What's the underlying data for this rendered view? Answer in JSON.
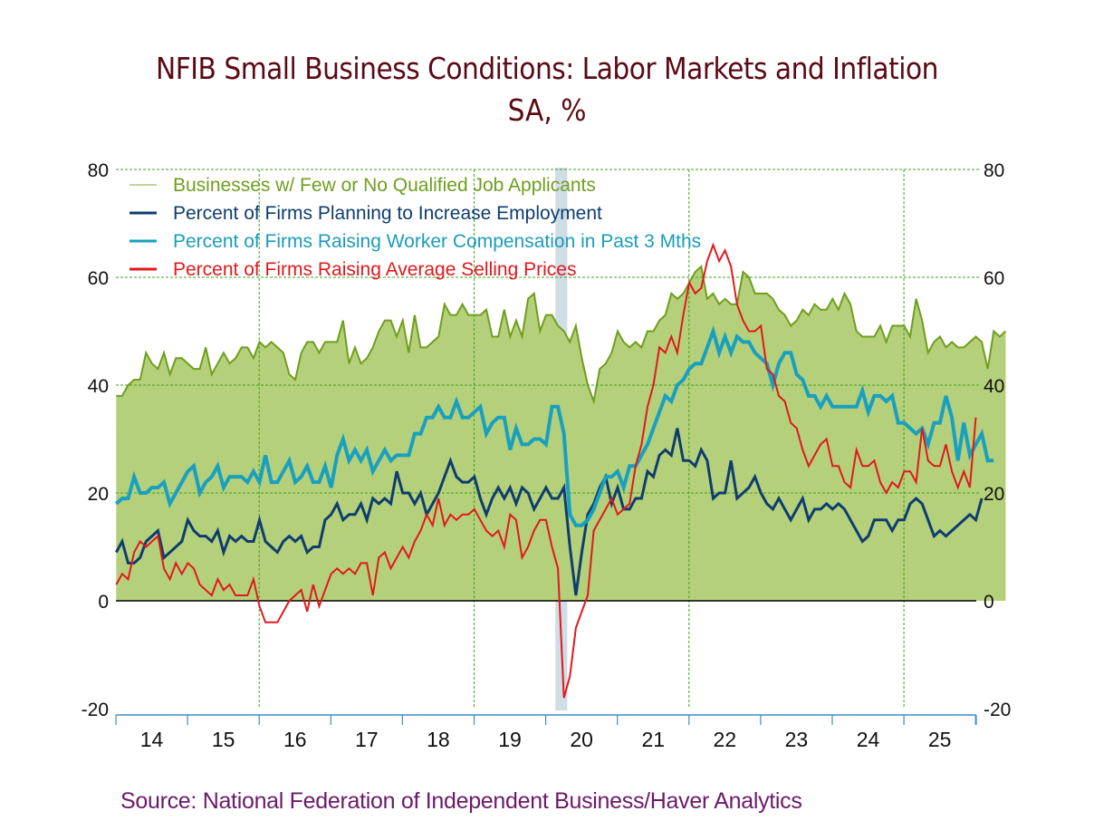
{
  "title": "NFIB Small Business Conditions: Labor Markets and Inflation",
  "subtitle": "SA, %",
  "source": "Source:  National Federation of Independent Business/Haver Analytics",
  "chart_data": {
    "type": "line",
    "title": "NFIB Small Business Conditions: Labor Markets and Inflation",
    "subtitle": "SA, %",
    "xlabel": "",
    "ylabel": "",
    "x_start": "2014-01",
    "frequency": "monthly",
    "ylim": [
      -20,
      80
    ],
    "yticks": [
      -20,
      0,
      20,
      40,
      60,
      80
    ],
    "ytick_labels": [
      "-20",
      "0",
      "20",
      "40",
      "60",
      "80"
    ],
    "xtick_labels": [
      "14",
      "15",
      "16",
      "17",
      "18",
      "19",
      "20",
      "21",
      "22",
      "23",
      "24",
      "25"
    ],
    "grid": true,
    "legend_position": "top-left",
    "recession_shading": {
      "start": "2020-02",
      "end": "2020-04",
      "color": "#cfdde6"
    },
    "colors": {
      "area_fill": "#b5d07a",
      "area_line": "#6f9e1e",
      "grid": "#3aa51a",
      "axis": "#3b8fc0"
    },
    "series": [
      {
        "name": "Businesses w/ Few or No Qualified Job Applicants",
        "style": "area",
        "color": "#6f9e1e",
        "values": [
          38,
          38,
          40,
          41,
          41,
          46,
          44,
          43,
          46,
          42,
          45,
          45,
          44,
          43,
          43,
          47,
          42,
          44,
          46,
          44,
          45,
          47,
          47,
          45,
          48,
          47,
          48,
          47,
          46,
          42,
          41,
          46,
          48,
          48,
          46,
          48,
          48,
          48,
          52,
          44,
          47,
          44,
          45,
          47,
          50,
          52,
          52,
          49,
          52,
          46,
          53,
          47,
          47,
          48,
          49,
          55,
          53,
          53,
          55,
          53,
          53,
          53,
          54,
          49,
          49,
          54,
          49,
          52,
          49,
          56,
          57,
          50,
          53,
          53,
          51,
          50,
          48,
          51,
          45,
          40,
          37,
          43,
          44,
          46,
          50,
          48,
          47,
          48,
          47,
          50,
          50,
          52,
          53,
          57,
          56,
          57,
          59,
          61,
          62,
          56,
          57,
          55,
          56,
          55,
          55,
          61,
          60,
          57,
          57,
          57,
          56,
          54,
          53,
          51,
          52,
          54,
          53,
          55,
          54,
          54,
          56,
          54,
          57,
          55,
          50,
          49,
          49,
          49,
          51,
          48,
          51,
          51,
          51,
          49,
          56,
          52,
          46,
          48,
          49,
          47,
          48,
          47,
          47,
          48,
          49,
          48,
          43,
          50,
          49,
          50
        ]
      },
      {
        "name": "Percent of Firms Planning to Increase Employment",
        "style": "line",
        "color": "#0f3d6e",
        "values": [
          9,
          11,
          7,
          7,
          8,
          11,
          12,
          13,
          8,
          9,
          10,
          11,
          15,
          13,
          12,
          12,
          11,
          13,
          9,
          12,
          11,
          12,
          11,
          11,
          15,
          11,
          10,
          9,
          11,
          12,
          11,
          12,
          9,
          10,
          10,
          15,
          16,
          18,
          15,
          16,
          16,
          18,
          15,
          19,
          18,
          19,
          18,
          24,
          20,
          20,
          18,
          20,
          16,
          18,
          20,
          23,
          26,
          23,
          22,
          22,
          23,
          19,
          16,
          19,
          21,
          19,
          21,
          18,
          21,
          20,
          17,
          19,
          21,
          19,
          19,
          21,
          10,
          1,
          9,
          16,
          18,
          21,
          23,
          18,
          21,
          17,
          17,
          19,
          19,
          24,
          23,
          27,
          28,
          27,
          32,
          26,
          26,
          25,
          28,
          26,
          19,
          20,
          20,
          26,
          19,
          20,
          21,
          23,
          20,
          18,
          17,
          19,
          17,
          15,
          17,
          19,
          15,
          17,
          17,
          18,
          17,
          18,
          17,
          15,
          13,
          11,
          12,
          15,
          15,
          15,
          13,
          15,
          15,
          18,
          19,
          18,
          15,
          12,
          13,
          12,
          13,
          14,
          15,
          16,
          15,
          19
        ]
      },
      {
        "name": "Percent of Firms Raising Worker Compensation in Past 3 Mths",
        "style": "line",
        "color": "#1aa0bf",
        "values": [
          18,
          19,
          19,
          23,
          20,
          20,
          21,
          21,
          22,
          18,
          20,
          22,
          24,
          25,
          20,
          22,
          23,
          25,
          21,
          23,
          23,
          23,
          22,
          24,
          22,
          27,
          22,
          22,
          24,
          26,
          22,
          23,
          25,
          22,
          22,
          25,
          21,
          27,
          30,
          26,
          28,
          26,
          28,
          24,
          26,
          28,
          26,
          27,
          27,
          27,
          31,
          31,
          34,
          34,
          36,
          34,
          34,
          37,
          34,
          34,
          35,
          36,
          31,
          33,
          34,
          34,
          28,
          32,
          29,
          29,
          30,
          30,
          29,
          36,
          36,
          31,
          16,
          14,
          14,
          15,
          17,
          20,
          23,
          23,
          24,
          21,
          25,
          25,
          27,
          29,
          32,
          35,
          38,
          37,
          40,
          41,
          43,
          44,
          44,
          47,
          50,
          46,
          49,
          46,
          49,
          48,
          48,
          46,
          45,
          44,
          40,
          44,
          46,
          46,
          42,
          41,
          38,
          38,
          36,
          38,
          36,
          36,
          36,
          36,
          36,
          39,
          35,
          38,
          38,
          37,
          38,
          33,
          33,
          32,
          31,
          32,
          29,
          33,
          33,
          38,
          34,
          26,
          33,
          27,
          29,
          31,
          26,
          26
        ]
      },
      {
        "name": "Percent of Firms Raising Average Selling Prices",
        "style": "line",
        "color": "#e0191e",
        "values": [
          3,
          5,
          4,
          9,
          11,
          10,
          11,
          12,
          6,
          4,
          7,
          5,
          7,
          6,
          3,
          2,
          1,
          4,
          2,
          3,
          1,
          1,
          1,
          4,
          -1,
          -4,
          -4,
          -4,
          -2,
          0,
          1,
          2,
          -2,
          3,
          -1,
          2,
          5,
          6,
          5,
          6,
          5,
          7,
          7,
          1,
          8,
          9,
          6,
          8,
          10,
          8,
          11,
          13,
          16,
          14,
          19,
          14,
          16,
          15,
          16,
          16,
          17,
          15,
          13,
          12,
          13,
          10,
          16,
          15,
          8,
          10,
          13,
          15,
          15,
          10,
          6,
          -18,
          -14,
          -5,
          -2,
          1,
          13,
          15,
          17,
          19,
          16,
          17,
          18,
          25,
          29,
          36,
          40,
          47,
          46,
          49,
          46,
          53,
          59,
          57,
          58,
          63,
          66,
          63,
          65,
          62,
          55,
          52,
          50,
          50,
          51,
          43,
          42,
          38,
          37,
          33,
          32,
          28,
          25,
          27,
          29,
          30,
          25,
          25,
          22,
          21,
          28,
          25,
          25,
          26,
          22,
          20,
          22,
          21,
          24,
          24,
          22,
          32,
          26,
          25,
          25,
          29,
          24,
          21,
          24,
          21,
          34
        ]
      }
    ]
  }
}
